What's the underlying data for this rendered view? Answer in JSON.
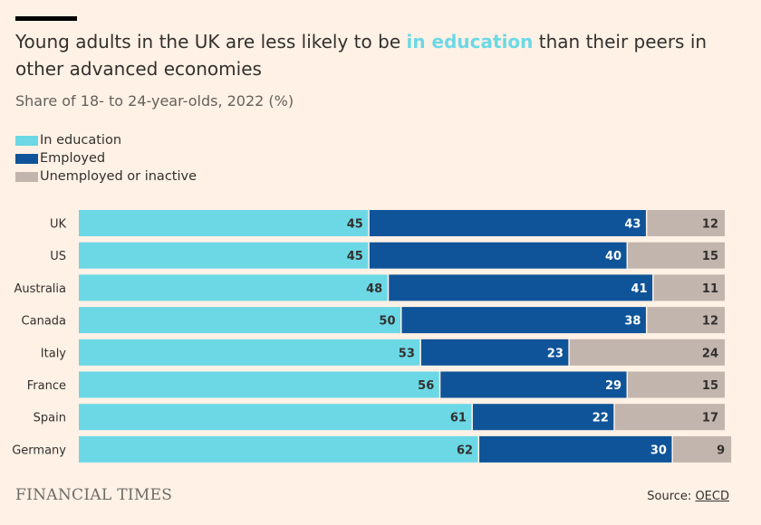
{
  "header": {
    "title_pre": "Young adults in the UK are less likely to be ",
    "title_highlight": "in education",
    "title_post": " than their peers in other advanced economies",
    "subtitle": "Share of 18- to 24-year-olds, 2022 (%)"
  },
  "colors": {
    "in_education": "#6cd8e6",
    "employed": "#0f5499",
    "unemployed": "#c2b5ad",
    "label_dark": "#33302e",
    "label_light": "#ffffff"
  },
  "legend": [
    {
      "label": "In education",
      "color": "#6cd8e6"
    },
    {
      "label": "Employed",
      "color": "#0f5499"
    },
    {
      "label": "Unemployed or inactive",
      "color": "#c2b5ad"
    }
  ],
  "chart_data": {
    "type": "bar",
    "orientation": "horizontal",
    "stacked": true,
    "title": "Young adults in the UK are less likely to be in education than their peers in other advanced economies",
    "subtitle": "Share of 18- to 24-year-olds, 2022 (%)",
    "categories": [
      "UK",
      "US",
      "Australia",
      "Canada",
      "Italy",
      "France",
      "Spain",
      "Germany"
    ],
    "series": [
      {
        "name": "In education",
        "values": [
          45,
          45,
          48,
          50,
          53,
          56,
          61,
          62
        ]
      },
      {
        "name": "Employed",
        "values": [
          43,
          40,
          41,
          38,
          23,
          29,
          22,
          30
        ]
      },
      {
        "name": "Unemployed or inactive",
        "values": [
          12,
          15,
          11,
          12,
          24,
          15,
          17,
          9
        ]
      }
    ],
    "xlim": [
      0,
      100
    ],
    "legend_position": "top-left",
    "grid": false
  },
  "footer": {
    "brand": "FINANCIAL TIMES",
    "source_prefix": "Source: ",
    "source_link": "OECD"
  }
}
